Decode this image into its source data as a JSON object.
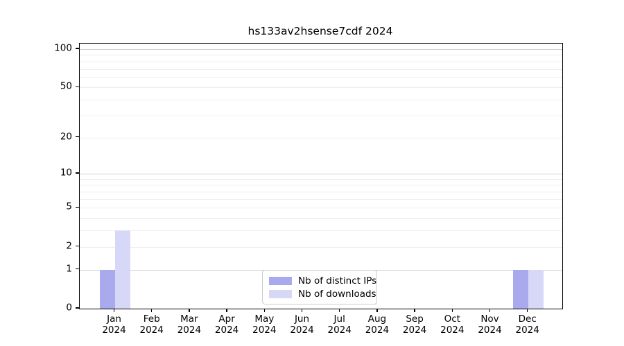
{
  "chart_data": {
    "type": "bar",
    "title": "hs133av2hsense7cdf 2024",
    "categories": [
      "Jan 2024",
      "Feb 2024",
      "Mar 2024",
      "Apr 2024",
      "May 2024",
      "Jun 2024",
      "Jul 2024",
      "Aug 2024",
      "Sep 2024",
      "Oct 2024",
      "Nov 2024",
      "Dec 2024"
    ],
    "x_months": [
      "Jan",
      "Feb",
      "Mar",
      "Apr",
      "May",
      "Jun",
      "Jul",
      "Aug",
      "Sep",
      "Oct",
      "Nov",
      "Dec"
    ],
    "x_year": "2024",
    "series": [
      {
        "name": "Nb of distinct IPs",
        "color": "#a9a9ee",
        "values": [
          1,
          0,
          0,
          0,
          0,
          0,
          0,
          0,
          0,
          0,
          0,
          1
        ]
      },
      {
        "name": "Nb of downloads",
        "color": "#d7d7f7",
        "values": [
          3,
          0,
          0,
          0,
          0,
          0,
          0,
          0,
          0,
          0,
          0,
          1
        ]
      }
    ],
    "yscale": "log1p",
    "ylim": [
      0,
      110.4
    ],
    "yticks": [
      100,
      50,
      20,
      10,
      5,
      2,
      1,
      0
    ],
    "grid_major": [
      1,
      10,
      100
    ],
    "grid_minor": [
      2,
      3,
      4,
      5,
      6,
      7,
      8,
      9,
      20,
      30,
      40,
      50,
      60,
      70,
      80,
      90
    ],
    "legend_position": "lower center inside axes",
    "grid_on": true,
    "colors": {
      "grid_major": "#d2d2d2",
      "grid_minor": "#ededed",
      "spine": "#000000",
      "text": "#000000"
    }
  }
}
